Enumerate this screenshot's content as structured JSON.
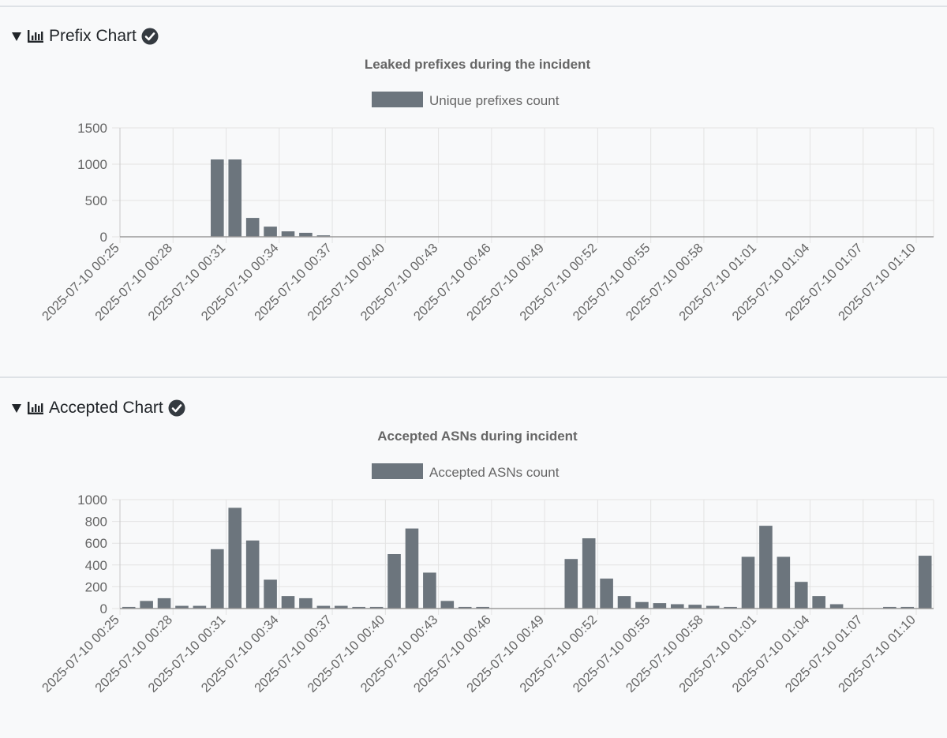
{
  "sections": [
    {
      "header": "Prefix Chart",
      "chart_data": {
        "type": "bar",
        "title": "Leaked prefixes during the incident",
        "series": [
          {
            "name": "Unique prefixes count",
            "color": "#6c757d",
            "values": [
              0,
              0,
              0,
              0,
              0,
              1065,
              1065,
              260,
              140,
              75,
              55,
              20,
              0,
              0,
              0,
              0,
              0,
              0,
              0,
              0,
              0,
              0,
              0,
              0,
              0,
              0,
              0,
              0,
              0,
              0,
              0,
              0,
              0,
              0,
              0,
              0,
              0,
              0,
              0,
              0,
              0,
              0,
              0,
              0,
              0,
              0
            ]
          }
        ],
        "ylim": [
          0,
          1500
        ],
        "yticks": [
          0,
          500,
          1000,
          1500
        ],
        "tick_labels": [
          "2025-07-10 00:25",
          "2025-07-10 00:28",
          "2025-07-10 00:31",
          "2025-07-10 00:34",
          "2025-07-10 00:37",
          "2025-07-10 00:40",
          "2025-07-10 00:43",
          "2025-07-10 00:46",
          "2025-07-10 00:49",
          "2025-07-10 00:52",
          "2025-07-10 00:55",
          "2025-07-10 00:58",
          "2025-07-10 01:01",
          "2025-07-10 01:04",
          "2025-07-10 01:07",
          "2025-07-10 01:10"
        ],
        "xlabel": "",
        "ylabel": ""
      }
    },
    {
      "header": "Accepted Chart",
      "chart_data": {
        "type": "bar",
        "title": "Accepted ASNs during incident",
        "series": [
          {
            "name": "Accepted ASNs count",
            "color": "#6c757d",
            "values": [
              15,
              70,
              95,
              25,
              25,
              545,
              925,
              625,
              265,
              115,
              95,
              25,
              25,
              15,
              15,
              500,
              735,
              330,
              70,
              15,
              15,
              0,
              0,
              0,
              0,
              455,
              645,
              275,
              115,
              60,
              50,
              40,
              35,
              25,
              15,
              475,
              760,
              475,
              245,
              115,
              40,
              0,
              0,
              15,
              15,
              485
            ]
          }
        ],
        "ylim": [
          0,
          1000
        ],
        "yticks": [
          0,
          200,
          400,
          600,
          800,
          1000
        ],
        "tick_labels": [
          "2025-07-10 00:25",
          "2025-07-10 00:28",
          "2025-07-10 00:31",
          "2025-07-10 00:34",
          "2025-07-10 00:37",
          "2025-07-10 00:40",
          "2025-07-10 00:43",
          "2025-07-10 00:46",
          "2025-07-10 00:49",
          "2025-07-10 00:52",
          "2025-07-10 00:55",
          "2025-07-10 00:58",
          "2025-07-10 01:01",
          "2025-07-10 01:04",
          "2025-07-10 01:07",
          "2025-07-10 01:10"
        ],
        "xlabel": "",
        "ylabel": ""
      }
    }
  ]
}
